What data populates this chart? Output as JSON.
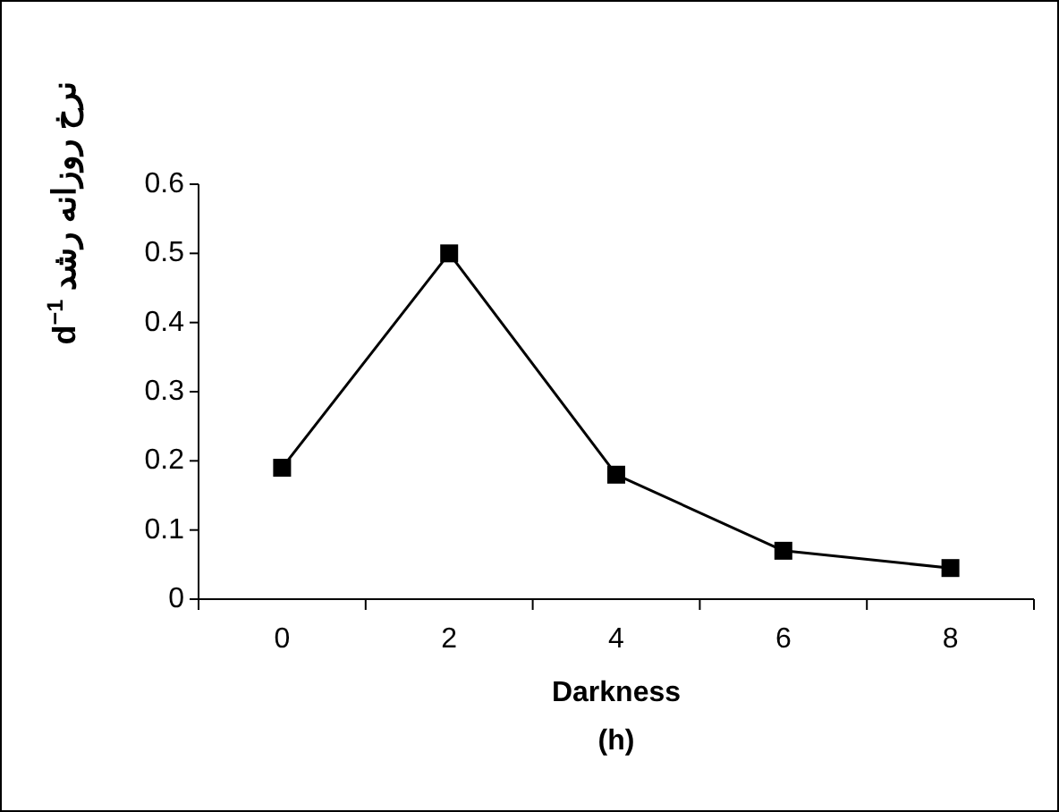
{
  "chart_data": {
    "type": "line",
    "xlabel": "Darkness\n(h)",
    "ylabel": "نرخ روزانه رشد d$^{−1}$",
    "categories": [
      "0",
      "2",
      "4",
      "6",
      "8"
    ],
    "series": [
      {
        "color": "#000000",
        "values": [
          0.19,
          0.5,
          0.18,
          0.07,
          0.045
        ]
      }
    ],
    "ylim": [
      0,
      0.6
    ],
    "yticks": [
      0,
      0.1,
      0.2,
      0.3,
      0.4,
      0.5,
      0.6
    ],
    "marker": "square",
    "line_style": "solid",
    "grid": false
  }
}
